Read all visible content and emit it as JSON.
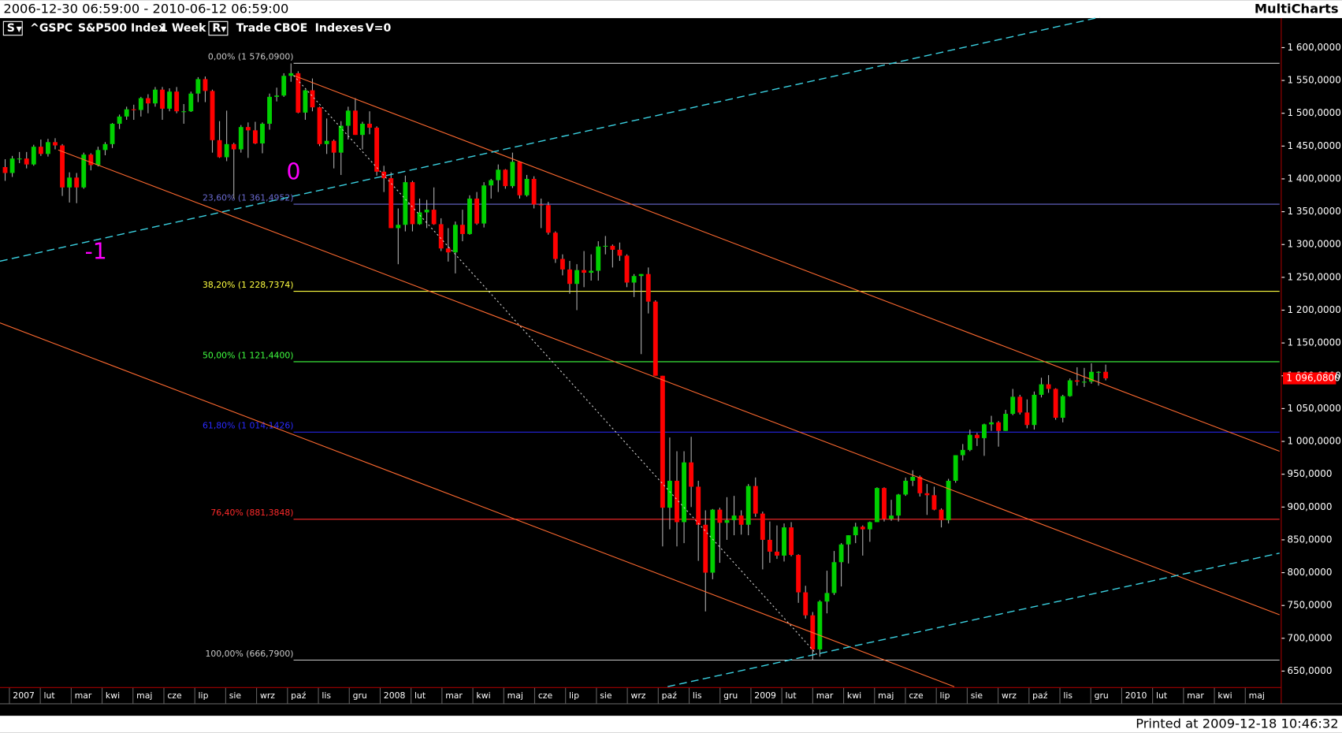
{
  "window": {
    "range": "2006-12-30 06:59:00 - 2010-06-12 06:59:00",
    "app": "MultiCharts",
    "printed": "Printed at 2009-12-18 10:46:32"
  },
  "toolbar": {
    "symbol_menu": "S",
    "symbol": "^GSPC",
    "description": "S&P500 Index",
    "interval": "1 Week",
    "range_menu": "R",
    "data_type": "Trade",
    "exchange": "CBOE",
    "category": "Indexes",
    "volume": "V=0"
  },
  "chart_data": {
    "type": "candlestick",
    "up_color": "#00d000",
    "down_color": "#ff0000",
    "ylim": [
      625,
      1645
    ],
    "yticks": [
      {
        "value": 1600,
        "label": "1 600,0000"
      },
      {
        "value": 1550,
        "label": "1 550,0000"
      },
      {
        "value": 1500,
        "label": "1 500,0000"
      },
      {
        "value": 1450,
        "label": "1 450,0000"
      },
      {
        "value": 1400,
        "label": "1 400,0000"
      },
      {
        "value": 1350,
        "label": "1 350,0000"
      },
      {
        "value": 1300,
        "label": "1 300,0000"
      },
      {
        "value": 1250,
        "label": "1 250,0000"
      },
      {
        "value": 1200,
        "label": "1 200,0000"
      },
      {
        "value": 1150,
        "label": "1 150,0000"
      },
      {
        "value": 1100,
        "label": "1 100,0000"
      },
      {
        "value": 1050,
        "label": "1 050,0000"
      },
      {
        "value": 1000,
        "label": "1 000,0000"
      },
      {
        "value": 950,
        "label": "950,0000"
      },
      {
        "value": 900,
        "label": "900,0000"
      },
      {
        "value": 850,
        "label": "850,0000"
      },
      {
        "value": 800,
        "label": "800,0000"
      },
      {
        "value": 750,
        "label": "750,0000"
      },
      {
        "value": 700,
        "label": "700,0000"
      },
      {
        "value": 650,
        "label": "650,0000"
      }
    ],
    "xticks": [
      "2007",
      "lut",
      "mar",
      "kwi",
      "maj",
      "cze",
      "lip",
      "sie",
      "wrz",
      "paź",
      "lis",
      "gru",
      "2008",
      "lut",
      "mar",
      "kwi",
      "maj",
      "cze",
      "lip",
      "sie",
      "wrz",
      "paź",
      "lis",
      "gru",
      "2009",
      "lut",
      "mar",
      "kwi",
      "maj",
      "cze",
      "lip",
      "sie",
      "wrz",
      "paź",
      "lis",
      "gru",
      "2010",
      "lut",
      "mar",
      "kwi",
      "maj"
    ],
    "last_price": {
      "value": 1096.08,
      "label": "1 096,0800"
    },
    "fib_levels": [
      {
        "value": 1576.09,
        "label": "0,00% (1 576,0900)",
        "color": "#c8c8c8"
      },
      {
        "value": 1361.4952,
        "label": "23,60% (1 361,4952)",
        "color": "#6a6ad0"
      },
      {
        "value": 1228.7374,
        "label": "38,20% (1 228,7374)",
        "color": "#ffff40"
      },
      {
        "value": 1121.44,
        "label": "50,00% (1 121,4400)",
        "color": "#40ff40"
      },
      {
        "value": 1014.1426,
        "label": "61,80% (1 014,1426)",
        "color": "#2a2aff"
      },
      {
        "value": 881.3848,
        "label": "76,40% (881,3848)",
        "color": "#ff2a2a"
      },
      {
        "value": 666.79,
        "label": "100,00% (666,7900)",
        "color": "#c8c8c8"
      }
    ],
    "annotations": [
      {
        "text": "0",
        "color": "#ff00ff"
      },
      {
        "text": "-1",
        "color": "#ff00ff"
      }
    ],
    "ohlc": [
      [
        1418,
        1430,
        1397,
        1409
      ],
      [
        1409,
        1435,
        1403,
        1431
      ],
      [
        1431,
        1441,
        1424,
        1431
      ],
      [
        1431,
        1441,
        1416,
        1422
      ],
      [
        1422,
        1452,
        1420,
        1449
      ],
      [
        1449,
        1460,
        1435,
        1438
      ],
      [
        1438,
        1461,
        1434,
        1456
      ],
      [
        1456,
        1462,
        1445,
        1451
      ],
      [
        1451,
        1453,
        1374,
        1387
      ],
      [
        1387,
        1410,
        1364,
        1402
      ],
      [
        1402,
        1409,
        1363,
        1387
      ],
      [
        1387,
        1440,
        1385,
        1437
      ],
      [
        1437,
        1439,
        1413,
        1421
      ],
      [
        1421,
        1449,
        1419,
        1444
      ],
      [
        1444,
        1456,
        1436,
        1453
      ],
      [
        1453,
        1485,
        1447,
        1484
      ],
      [
        1484,
        1498,
        1476,
        1495
      ],
      [
        1495,
        1510,
        1490,
        1506
      ],
      [
        1506,
        1513,
        1490,
        1505
      ],
      [
        1505,
        1525,
        1495,
        1523
      ],
      [
        1523,
        1529,
        1500,
        1515
      ],
      [
        1515,
        1540,
        1510,
        1536
      ],
      [
        1536,
        1540,
        1490,
        1507
      ],
      [
        1507,
        1538,
        1503,
        1533
      ],
      [
        1533,
        1540,
        1500,
        1503
      ],
      [
        1503,
        1514,
        1484,
        1503
      ],
      [
        1503,
        1533,
        1502,
        1530
      ],
      [
        1530,
        1555,
        1517,
        1552
      ],
      [
        1552,
        1556,
        1517,
        1534
      ],
      [
        1534,
        1536,
        1440,
        1459
      ],
      [
        1459,
        1488,
        1432,
        1433
      ],
      [
        1433,
        1504,
        1427,
        1453
      ],
      [
        1453,
        1455,
        1370,
        1445
      ],
      [
        1445,
        1482,
        1440,
        1479
      ],
      [
        1479,
        1486,
        1432,
        1474
      ],
      [
        1474,
        1487,
        1453,
        1454
      ],
      [
        1454,
        1486,
        1439,
        1484
      ],
      [
        1484,
        1530,
        1475,
        1525
      ],
      [
        1525,
        1539,
        1518,
        1527
      ],
      [
        1527,
        1561,
        1525,
        1557
      ],
      [
        1557,
        1576,
        1548,
        1561
      ],
      [
        1561,
        1564,
        1500,
        1501
      ],
      [
        1501,
        1536,
        1490,
        1535
      ],
      [
        1535,
        1553,
        1503,
        1509
      ],
      [
        1509,
        1510,
        1450,
        1453
      ],
      [
        1453,
        1492,
        1438,
        1458
      ],
      [
        1458,
        1460,
        1416,
        1440
      ],
      [
        1440,
        1488,
        1406,
        1481
      ],
      [
        1481,
        1510,
        1460,
        1504
      ],
      [
        1504,
        1523,
        1467,
        1467
      ],
      [
        1467,
        1487,
        1445,
        1484
      ],
      [
        1484,
        1503,
        1468,
        1478
      ],
      [
        1478,
        1480,
        1405,
        1411
      ],
      [
        1411,
        1420,
        1380,
        1401
      ],
      [
        1401,
        1410,
        1325,
        1325
      ],
      [
        1325,
        1355,
        1270,
        1330
      ],
      [
        1330,
        1405,
        1320,
        1395
      ],
      [
        1395,
        1397,
        1320,
        1331
      ],
      [
        1331,
        1370,
        1330,
        1349
      ],
      [
        1349,
        1368,
        1325,
        1353
      ],
      [
        1353,
        1387,
        1330,
        1331
      ],
      [
        1331,
        1340,
        1290,
        1294
      ],
      [
        1294,
        1325,
        1274,
        1288
      ],
      [
        1288,
        1335,
        1256,
        1330
      ],
      [
        1330,
        1353,
        1305,
        1316
      ],
      [
        1316,
        1375,
        1315,
        1370
      ],
      [
        1370,
        1380,
        1330,
        1332
      ],
      [
        1332,
        1395,
        1326,
        1390
      ],
      [
        1390,
        1400,
        1370,
        1398
      ],
      [
        1398,
        1422,
        1380,
        1414
      ],
      [
        1414,
        1415,
        1385,
        1389
      ],
      [
        1389,
        1440,
        1386,
        1426
      ],
      [
        1426,
        1427,
        1370,
        1375
      ],
      [
        1375,
        1406,
        1373,
        1400
      ],
      [
        1400,
        1404,
        1355,
        1361
      ],
      [
        1361,
        1370,
        1325,
        1360
      ],
      [
        1360,
        1365,
        1315,
        1318
      ],
      [
        1318,
        1320,
        1272,
        1278
      ],
      [
        1278,
        1285,
        1253,
        1262
      ],
      [
        1262,
        1275,
        1225,
        1240
      ],
      [
        1240,
        1270,
        1200,
        1261
      ],
      [
        1261,
        1290,
        1235,
        1257
      ],
      [
        1257,
        1285,
        1245,
        1260
      ],
      [
        1260,
        1305,
        1245,
        1297
      ],
      [
        1297,
        1313,
        1285,
        1298
      ],
      [
        1298,
        1300,
        1265,
        1292
      ],
      [
        1292,
        1303,
        1275,
        1283
      ],
      [
        1283,
        1285,
        1235,
        1242
      ],
      [
        1242,
        1255,
        1220,
        1252
      ],
      [
        1252,
        1255,
        1133,
        1255
      ],
      [
        1255,
        1265,
        1195,
        1213
      ],
      [
        1213,
        1215,
        1100,
        1100
      ],
      [
        1100,
        1100,
        840,
        899
      ],
      [
        899,
        1006,
        866,
        940
      ],
      [
        940,
        985,
        840,
        877
      ],
      [
        877,
        985,
        845,
        968
      ],
      [
        968,
        1007,
        900,
        931
      ],
      [
        931,
        940,
        818,
        873
      ],
      [
        873,
        895,
        741,
        800
      ],
      [
        800,
        897,
        790,
        896
      ],
      [
        896,
        899,
        815,
        876
      ],
      [
        876,
        915,
        850,
        880
      ],
      [
        880,
        917,
        857,
        887
      ],
      [
        887,
        895,
        858,
        873
      ],
      [
        873,
        935,
        857,
        932
      ],
      [
        932,
        945,
        885,
        890
      ],
      [
        890,
        893,
        805,
        850
      ],
      [
        850,
        878,
        815,
        832
      ],
      [
        832,
        872,
        821,
        826
      ],
      [
        826,
        875,
        817,
        869
      ],
      [
        869,
        877,
        825,
        827
      ],
      [
        827,
        828,
        754,
        770
      ],
      [
        770,
        780,
        730,
        735
      ],
      [
        735,
        740,
        667,
        683
      ],
      [
        683,
        758,
        672,
        756
      ],
      [
        756,
        803,
        738,
        769
      ],
      [
        769,
        833,
        766,
        816
      ],
      [
        816,
        845,
        779,
        843
      ],
      [
        843,
        857,
        814,
        857
      ],
      [
        857,
        876,
        845,
        870
      ],
      [
        870,
        872,
        826,
        866
      ],
      [
        866,
        878,
        847,
        877
      ],
      [
        877,
        930,
        877,
        929
      ],
      [
        929,
        930,
        878,
        882
      ],
      [
        882,
        911,
        879,
        887
      ],
      [
        887,
        920,
        878,
        919
      ],
      [
        919,
        945,
        917,
        940
      ],
      [
        940,
        956,
        932,
        946
      ],
      [
        946,
        948,
        916,
        921
      ],
      [
        921,
        935,
        888,
        918
      ],
      [
        918,
        931,
        895,
        896
      ],
      [
        896,
        898,
        869,
        880
      ],
      [
        880,
        943,
        875,
        940
      ],
      [
        940,
        979,
        937,
        979
      ],
      [
        979,
        996,
        971,
        987
      ],
      [
        987,
        1018,
        985,
        1010
      ],
      [
        1010,
        1013,
        993,
        1005
      ],
      [
        1005,
        1027,
        978,
        1026
      ],
      [
        1026,
        1039,
        1016,
        1029
      ],
      [
        1029,
        1031,
        992,
        1016
      ],
      [
        1016,
        1048,
        1016,
        1042
      ],
      [
        1042,
        1080,
        1040,
        1068
      ],
      [
        1068,
        1071,
        1041,
        1044
      ],
      [
        1044,
        1064,
        1020,
        1025
      ],
      [
        1025,
        1076,
        1018,
        1071
      ],
      [
        1071,
        1097,
        1067,
        1087
      ],
      [
        1087,
        1101,
        1074,
        1080
      ],
      [
        1080,
        1081,
        1033,
        1036
      ],
      [
        1036,
        1071,
        1029,
        1069
      ],
      [
        1069,
        1096,
        1068,
        1093
      ],
      [
        1093,
        1113,
        1085,
        1091
      ],
      [
        1091,
        1112,
        1083,
        1091
      ],
      [
        1091,
        1119,
        1088,
        1106
      ],
      [
        1106,
        1107,
        1085,
        1106
      ],
      [
        1106,
        1117,
        1093,
        1096.08
      ]
    ]
  }
}
